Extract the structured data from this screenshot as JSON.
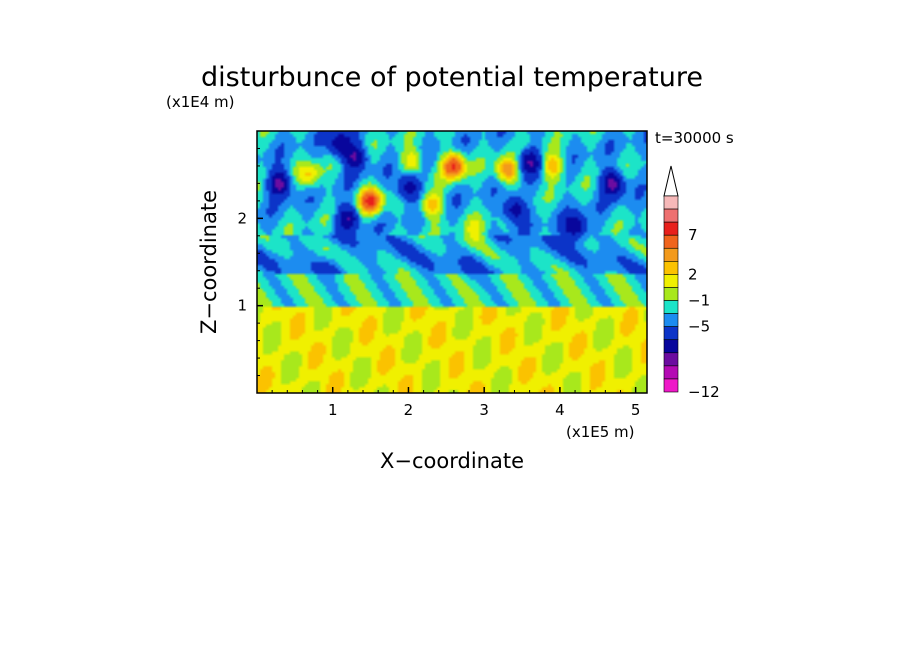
{
  "chart_data": {
    "type": "heatmap",
    "title": "disturbunce of potential temperature",
    "time_label": "t=30000 s",
    "xlabel": "X−coordinate",
    "ylabel": "Z−coordinate",
    "x_unit": "(x1E5 m)",
    "y_unit": "(x1E4 m)",
    "xlim": [
      0,
      5.15
    ],
    "ylim": [
      0,
      3.0
    ],
    "x_ticks": [
      "1",
      "2",
      "3",
      "4",
      "5"
    ],
    "y_ticks": [
      "1",
      "2"
    ],
    "colorbar": {
      "tick_labels": [
        "7",
        "2",
        "−1",
        "−5",
        "−12"
      ],
      "extend": "max",
      "colors_top_to_bottom": [
        "#f6b8b8",
        "#ee7070",
        "#e8201c",
        "#f0641c",
        "#f39a1c",
        "#fbc200",
        "#f0f000",
        "#a8e81c",
        "#1ce4c8",
        "#1c8cf0",
        "#0c34c8",
        "#08069c",
        "#6c0ca0",
        "#b40ab4",
        "#ef18c8"
      ]
    },
    "features": [
      {
        "x": 0.3,
        "z": 2.4,
        "value": -6
      },
      {
        "x": 1.2,
        "z": 2.0,
        "value": -5
      },
      {
        "x": 1.5,
        "z": 2.2,
        "value": 7
      },
      {
        "x": 2.6,
        "z": 2.6,
        "value": 7
      },
      {
        "x": 3.3,
        "z": 2.55,
        "value": 5
      },
      {
        "x": 4.7,
        "z": 2.4,
        "value": -6
      },
      {
        "x": 1.1,
        "z": 2.85,
        "value": -5
      },
      {
        "x": 2.05,
        "z": 2.65,
        "value": 3
      },
      {
        "x": 3.9,
        "z": 2.6,
        "value": 4
      },
      {
        "x": 1.3,
        "z": 2.7,
        "value": -5
      },
      {
        "x": 2.0,
        "z": 2.35,
        "value": -5
      },
      {
        "x": 2.3,
        "z": 2.15,
        "value": 4
      },
      {
        "x": 3.4,
        "z": 2.1,
        "value": -5
      },
      {
        "x": 4.2,
        "z": 1.9,
        "value": -5
      },
      {
        "x": 0.7,
        "z": 2.5,
        "value": 3
      },
      {
        "x": 2.9,
        "z": 1.85,
        "value": 2
      },
      {
        "x": 2.8,
        "z": 1.4,
        "value": -1
      },
      {
        "x": 1.0,
        "z": 1.45,
        "value": -1
      },
      {
        "x": 3.6,
        "z": 2.65,
        "value": -5
      }
    ]
  }
}
